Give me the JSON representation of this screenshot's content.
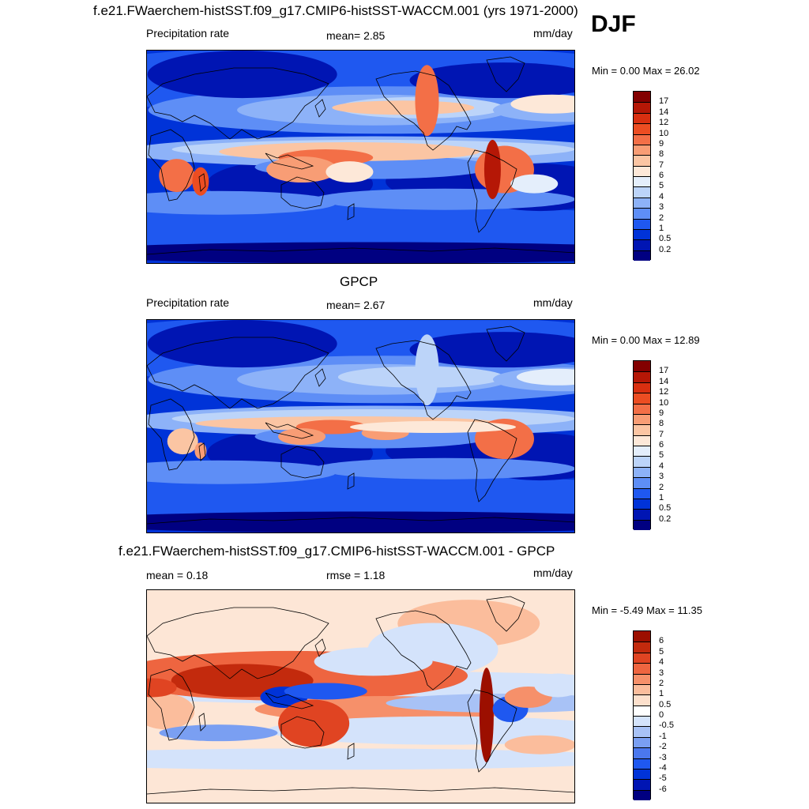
{
  "season": "DJF",
  "panels": [
    {
      "title": "f.e21.FWaerchem-histSST.f09_g17.CMIP6-histSST-WACCM.001 (yrs 1971-2000)",
      "left_label": "Precipitation rate",
      "center_label": "mean=   2.85",
      "right_label": "mm/day",
      "minmax_label": "Min =   0.00 Max =  26.02",
      "colorbar": {
        "colors": [
          "#000081",
          "#0015b3",
          "#0033d8",
          "#1f58f0",
          "#5e8ef6",
          "#8db2f8",
          "#bcd4f9",
          "#e4eefb",
          "#fde8d8",
          "#fbc5a3",
          "#f89d75",
          "#f36f47",
          "#ec4d22",
          "#d92f10",
          "#b51706",
          "#830000"
        ],
        "labels": [
          "0.2",
          "0.5",
          "1",
          "2",
          "3",
          "4",
          "5",
          "6",
          "7",
          "8",
          "9",
          "10",
          "12",
          "14",
          "17"
        ]
      },
      "map_kind": "model"
    },
    {
      "title": "GPCP",
      "left_label": "Precipitation rate",
      "center_label": "mean=   2.67",
      "right_label": "mm/day",
      "minmax_label": "Min =   0.00 Max =  12.89",
      "colorbar": {
        "colors": [
          "#000081",
          "#0015b3",
          "#0033d8",
          "#1f58f0",
          "#5e8ef6",
          "#8db2f8",
          "#bcd4f9",
          "#e4eefb",
          "#fde8d8",
          "#fbc5a3",
          "#f89d75",
          "#f36f47",
          "#ec4d22",
          "#d92f10",
          "#b51706",
          "#830000"
        ],
        "labels": [
          "0.2",
          "0.5",
          "1",
          "2",
          "3",
          "4",
          "5",
          "6",
          "7",
          "8",
          "9",
          "10",
          "12",
          "14",
          "17"
        ]
      },
      "map_kind": "obs"
    },
    {
      "title": "f.e21.FWaerchem-histSST.f09_g17.CMIP6-histSST-WACCM.001 - GPCP",
      "left_label": "mean =   0.18",
      "center_label": "rmse =   1.18",
      "right_label": "mm/day",
      "minmax_label": "Min =  -5.49 Max =  11.35",
      "colorbar": {
        "colors": [
          "#000081",
          "#0015b3",
          "#0033d8",
          "#1f58f0",
          "#4b78ee",
          "#7a9ff2",
          "#a8c2f6",
          "#d4e3fb",
          "#ffffff",
          "#fde0cc",
          "#fbbd9c",
          "#f6906a",
          "#ee6540",
          "#e04422",
          "#c32a0d",
          "#9c0f00"
        ],
        "labels": [
          "-6",
          "-5",
          "-4",
          "-3",
          "-2",
          "-1",
          "-0.5",
          "0",
          "0.5",
          "1",
          "2",
          "3",
          "4",
          "5",
          "6"
        ]
      },
      "map_kind": "diff"
    }
  ]
}
